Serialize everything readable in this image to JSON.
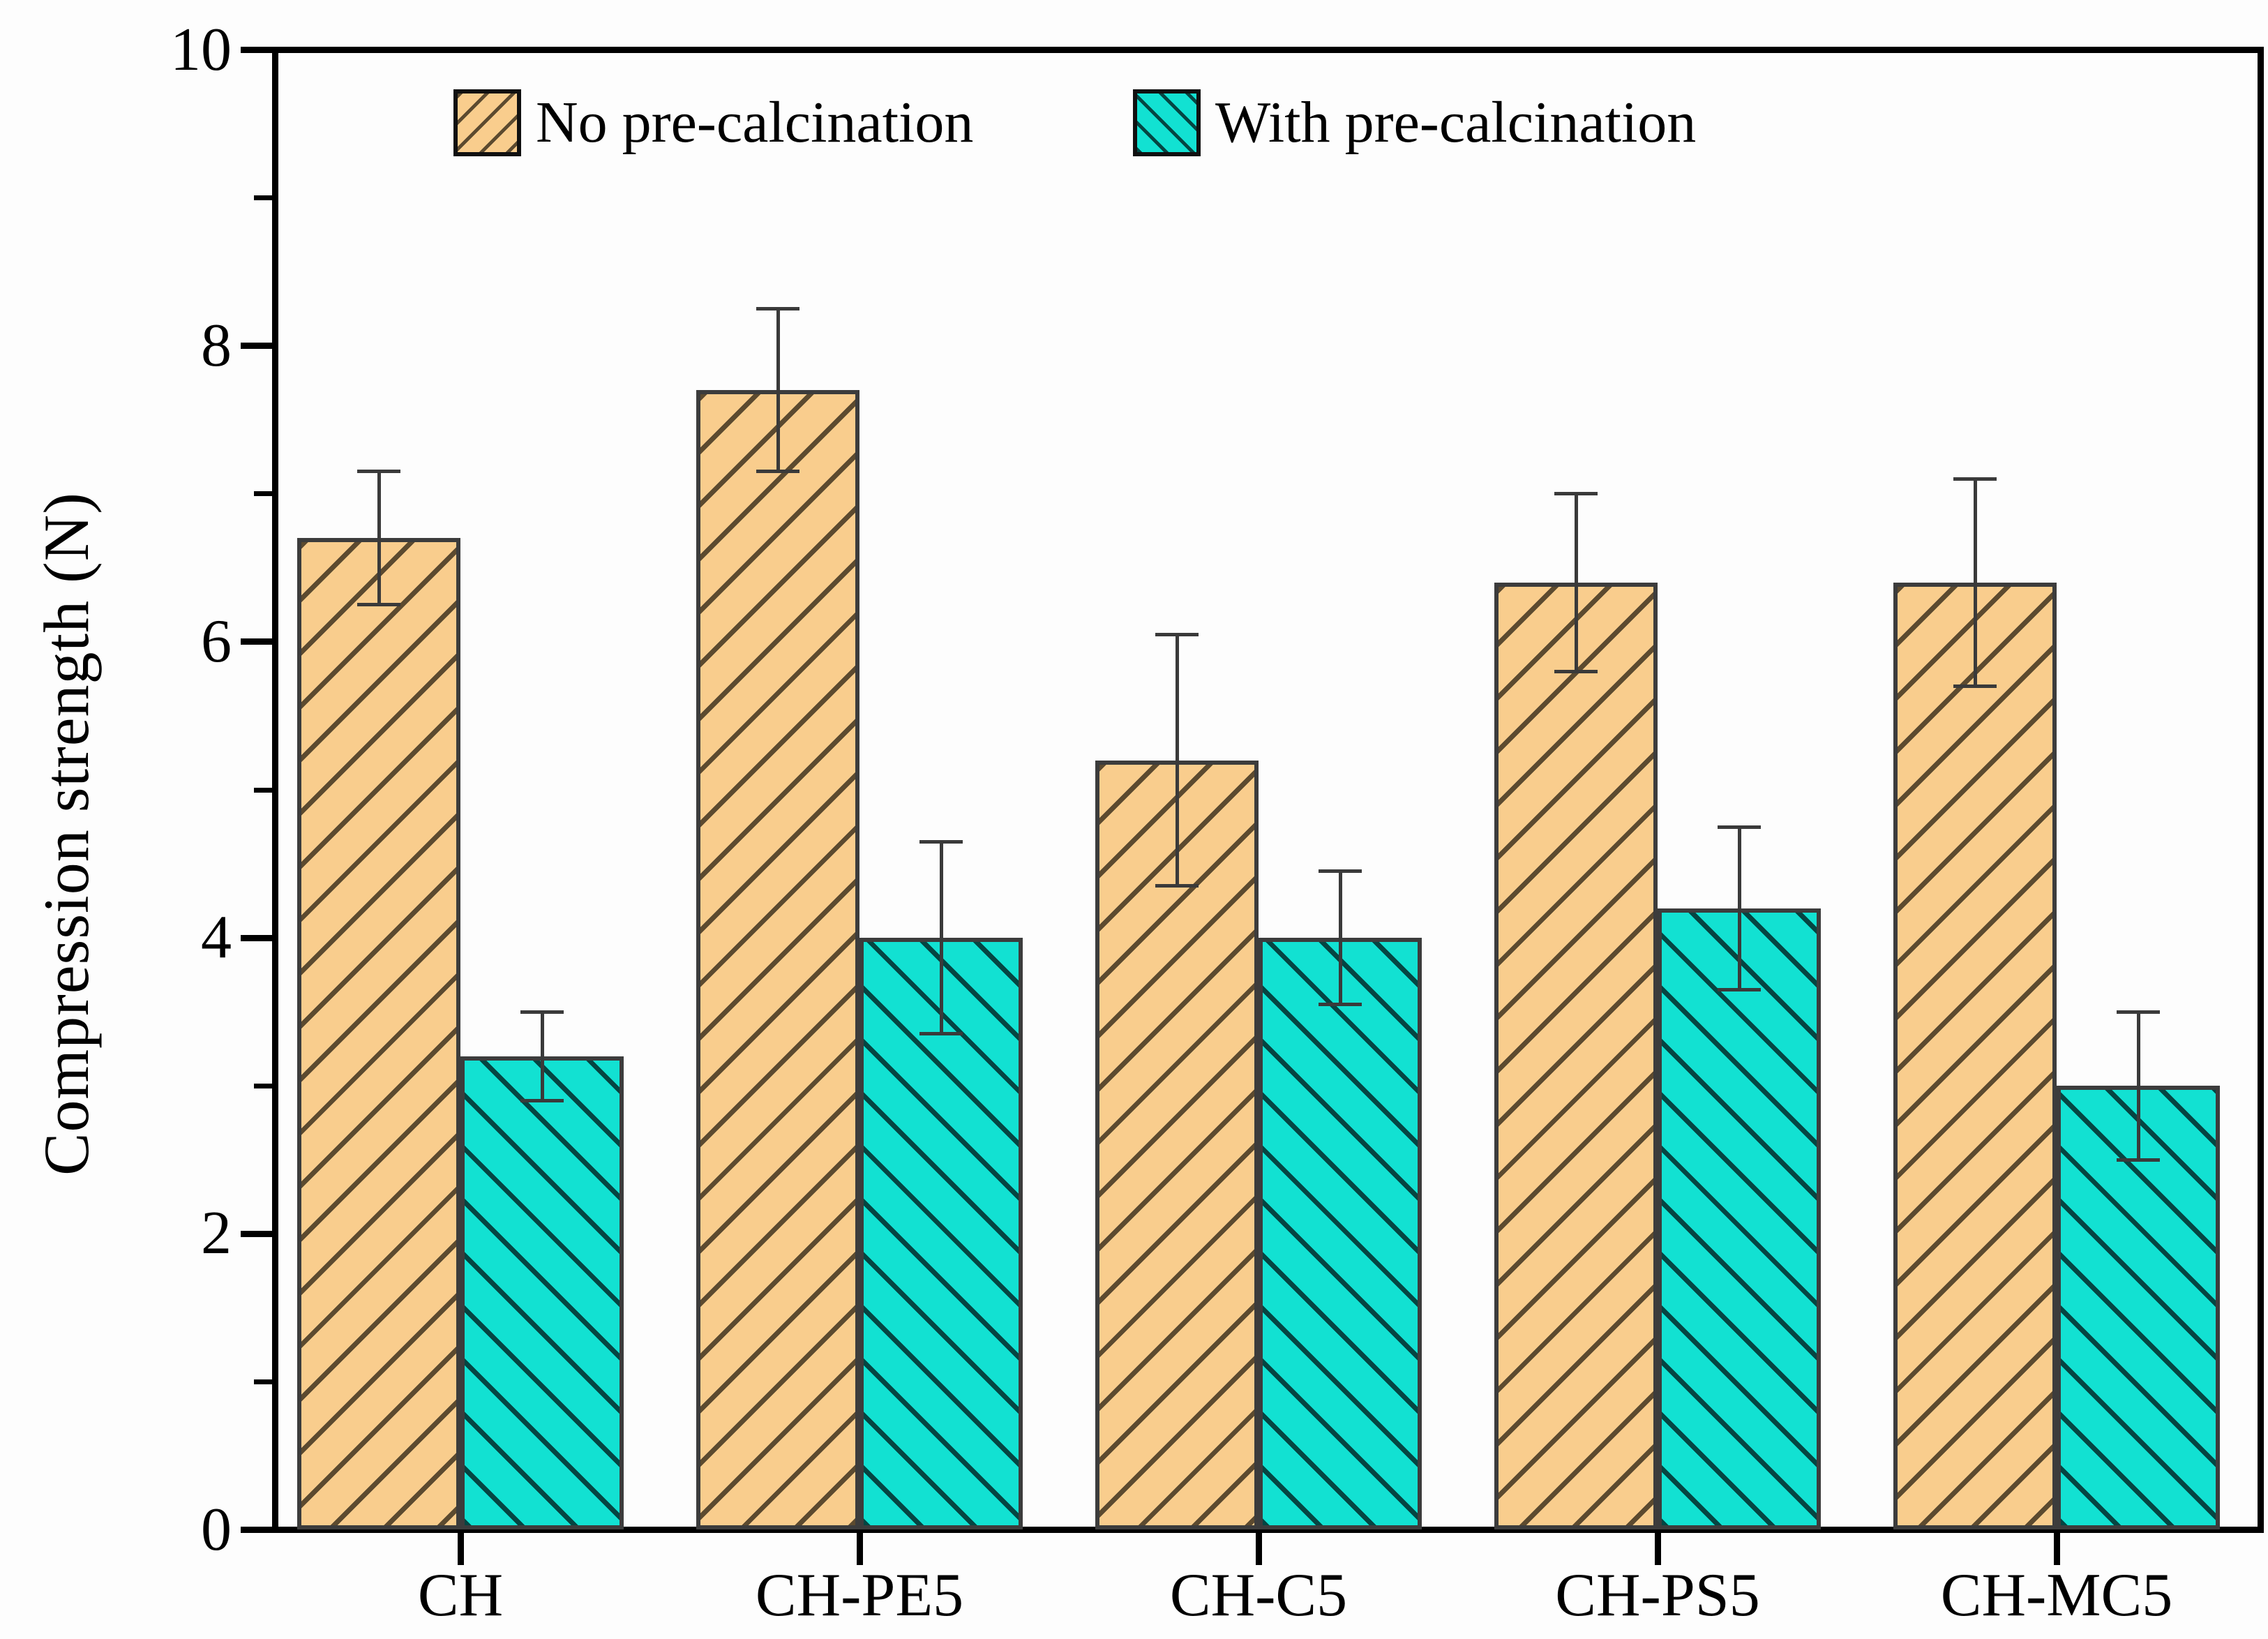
{
  "chart_data": {
    "type": "bar",
    "title": "",
    "xlabel": "",
    "ylabel": "Compression strength (N)",
    "ylim": [
      0,
      10
    ],
    "y_major_ticks": [
      0,
      2,
      4,
      6,
      8,
      10
    ],
    "y_minor_ticks": [
      1,
      3,
      5,
      7,
      9
    ],
    "grid": false,
    "legend_position": "top-inside",
    "categories": [
      "CH",
      "CH-PE5",
      "CH-C5",
      "CH-PS5",
      "CH-MC5"
    ],
    "series": [
      {
        "name": "No pre-calcination",
        "color": "#F9CD8D",
        "hatch": "/",
        "hatch_color": "#5c4a2f",
        "values": [
          6.7,
          7.7,
          5.2,
          6.4,
          6.4
        ],
        "errors": [
          0.45,
          0.55,
          0.85,
          0.6,
          0.7
        ]
      },
      {
        "name": "With pre-calcination",
        "color": "#12E1D2",
        "hatch": "\\",
        "hatch_color": "#054542",
        "values": [
          3.2,
          4.0,
          4.0,
          4.2,
          3.0
        ],
        "errors": [
          0.3,
          0.65,
          0.45,
          0.55,
          0.5
        ]
      }
    ],
    "axis_color": "#000000",
    "error_bar_color": "#3a3a3a"
  }
}
